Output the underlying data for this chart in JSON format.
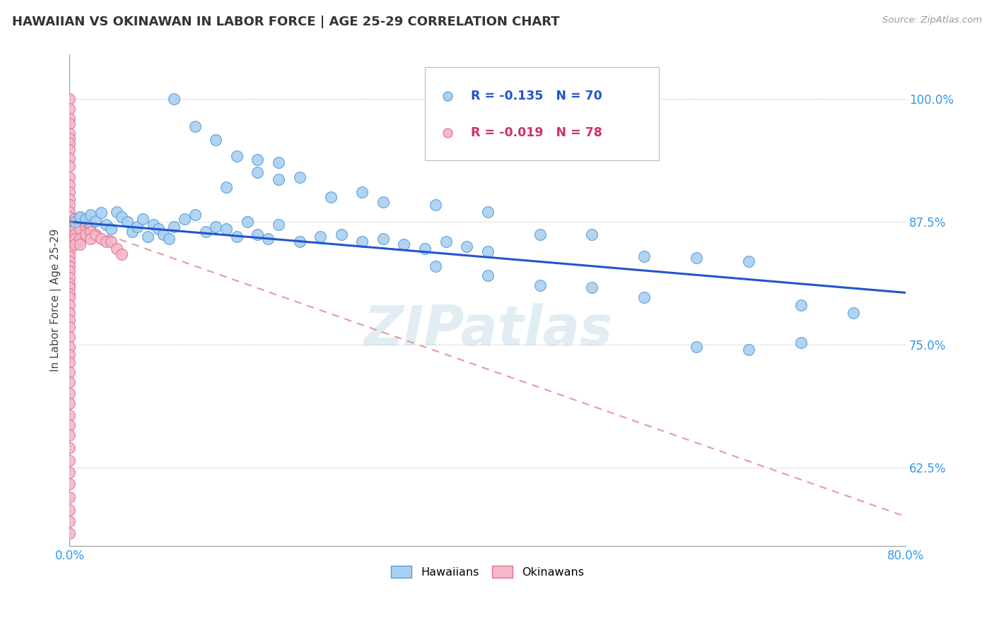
{
  "title": "HAWAIIAN VS OKINAWAN IN LABOR FORCE | AGE 25-29 CORRELATION CHART",
  "source": "Source: ZipAtlas.com",
  "ylabel": "In Labor Force | Age 25-29",
  "ytick_labels": [
    "100.0%",
    "87.5%",
    "75.0%",
    "62.5%"
  ],
  "ytick_values": [
    1.0,
    0.875,
    0.75,
    0.625
  ],
  "xmin": 0.0,
  "xmax": 0.8,
  "ymin": 0.545,
  "ymax": 1.045,
  "legend_blue_r": "-0.135",
  "legend_blue_n": "70",
  "legend_pink_r": "-0.019",
  "legend_pink_n": "78",
  "blue_color": "#A8D0F0",
  "pink_color": "#F5B8C8",
  "blue_edge_color": "#5599DD",
  "pink_edge_color": "#E07090",
  "blue_line_color": "#2255CC",
  "pink_line_color": "#DD8899",
  "watermark": "ZIPatlas",
  "blue_x": [
    0.005,
    0.01,
    0.015,
    0.02,
    0.025,
    0.03,
    0.035,
    0.04,
    0.045,
    0.05,
    0.055,
    0.06,
    0.065,
    0.07,
    0.075,
    0.08,
    0.085,
    0.09,
    0.095,
    0.1,
    0.11,
    0.12,
    0.13,
    0.14,
    0.15,
    0.16,
    0.17,
    0.18,
    0.19,
    0.2,
    0.22,
    0.24,
    0.26,
    0.28,
    0.3,
    0.32,
    0.34,
    0.36,
    0.38,
    0.4,
    0.15,
    0.18,
    0.2,
    0.22,
    0.25,
    0.28,
    0.3,
    0.35,
    0.4,
    0.45,
    0.5,
    0.55,
    0.6,
    0.65,
    0.7,
    0.75,
    0.35,
    0.4,
    0.45,
    0.5,
    0.55,
    0.6,
    0.65,
    0.7,
    0.1,
    0.12,
    0.14,
    0.16,
    0.18,
    0.2
  ],
  "blue_y": [
    0.875,
    0.88,
    0.878,
    0.882,
    0.876,
    0.884,
    0.872,
    0.868,
    0.885,
    0.88,
    0.875,
    0.865,
    0.87,
    0.878,
    0.86,
    0.872,
    0.868,
    0.862,
    0.858,
    0.87,
    0.878,
    0.882,
    0.865,
    0.87,
    0.868,
    0.86,
    0.875,
    0.862,
    0.858,
    0.872,
    0.855,
    0.86,
    0.862,
    0.855,
    0.858,
    0.852,
    0.848,
    0.855,
    0.85,
    0.845,
    0.91,
    0.925,
    0.935,
    0.92,
    0.9,
    0.905,
    0.895,
    0.892,
    0.885,
    0.862,
    0.862,
    0.84,
    0.838,
    0.835,
    0.79,
    0.782,
    0.83,
    0.82,
    0.81,
    0.808,
    0.798,
    0.748,
    0.745,
    0.752,
    1.0,
    0.972,
    0.958,
    0.942,
    0.938,
    0.918
  ],
  "pink_x": [
    0.0,
    0.0,
    0.0,
    0.0,
    0.0,
    0.0,
    0.0,
    0.0,
    0.0,
    0.0,
    0.0,
    0.0,
    0.0,
    0.0,
    0.0,
    0.0,
    0.0,
    0.0,
    0.0,
    0.0,
    0.0,
    0.0,
    0.0,
    0.0,
    0.0,
    0.0,
    0.0,
    0.0,
    0.0,
    0.0,
    0.005,
    0.005,
    0.005,
    0.005,
    0.005,
    0.005,
    0.01,
    0.01,
    0.01,
    0.01,
    0.01,
    0.015,
    0.015,
    0.02,
    0.02,
    0.02,
    0.025,
    0.03,
    0.035,
    0.04,
    0.045,
    0.05,
    0.0,
    0.0,
    0.0,
    0.0,
    0.0,
    0.0,
    0.0,
    0.0,
    0.0,
    0.0,
    0.0,
    0.0,
    0.0,
    0.0,
    0.0,
    0.0,
    0.0,
    0.0,
    0.0,
    0.0,
    0.0,
    0.0,
    0.0,
    0.0,
    0.0,
    0.0
  ],
  "pink_y": [
    1.0,
    0.99,
    0.98,
    0.975,
    0.965,
    0.96,
    0.955,
    0.948,
    0.94,
    0.932,
    0.92,
    0.912,
    0.905,
    0.898,
    0.892,
    0.885,
    0.88,
    0.875,
    0.872,
    0.868,
    0.862,
    0.858,
    0.85,
    0.845,
    0.84,
    0.835,
    0.83,
    0.825,
    0.818,
    0.812,
    0.878,
    0.872,
    0.868,
    0.862,
    0.858,
    0.852,
    0.878,
    0.872,
    0.868,
    0.858,
    0.852,
    0.87,
    0.862,
    0.872,
    0.865,
    0.858,
    0.862,
    0.858,
    0.855,
    0.855,
    0.848,
    0.842,
    0.808,
    0.802,
    0.798,
    0.79,
    0.782,
    0.775,
    0.768,
    0.758,
    0.748,
    0.74,
    0.732,
    0.722,
    0.712,
    0.7,
    0.69,
    0.678,
    0.668,
    0.658,
    0.645,
    0.632,
    0.62,
    0.608,
    0.595,
    0.582,
    0.57,
    0.558
  ],
  "blue_trendline_x": [
    0.0,
    0.8
  ],
  "blue_trendline_y": [
    0.875,
    0.8028
  ],
  "pink_trendline_x": [
    0.0,
    0.8
  ],
  "pink_trendline_y": [
    0.875,
    0.575
  ]
}
